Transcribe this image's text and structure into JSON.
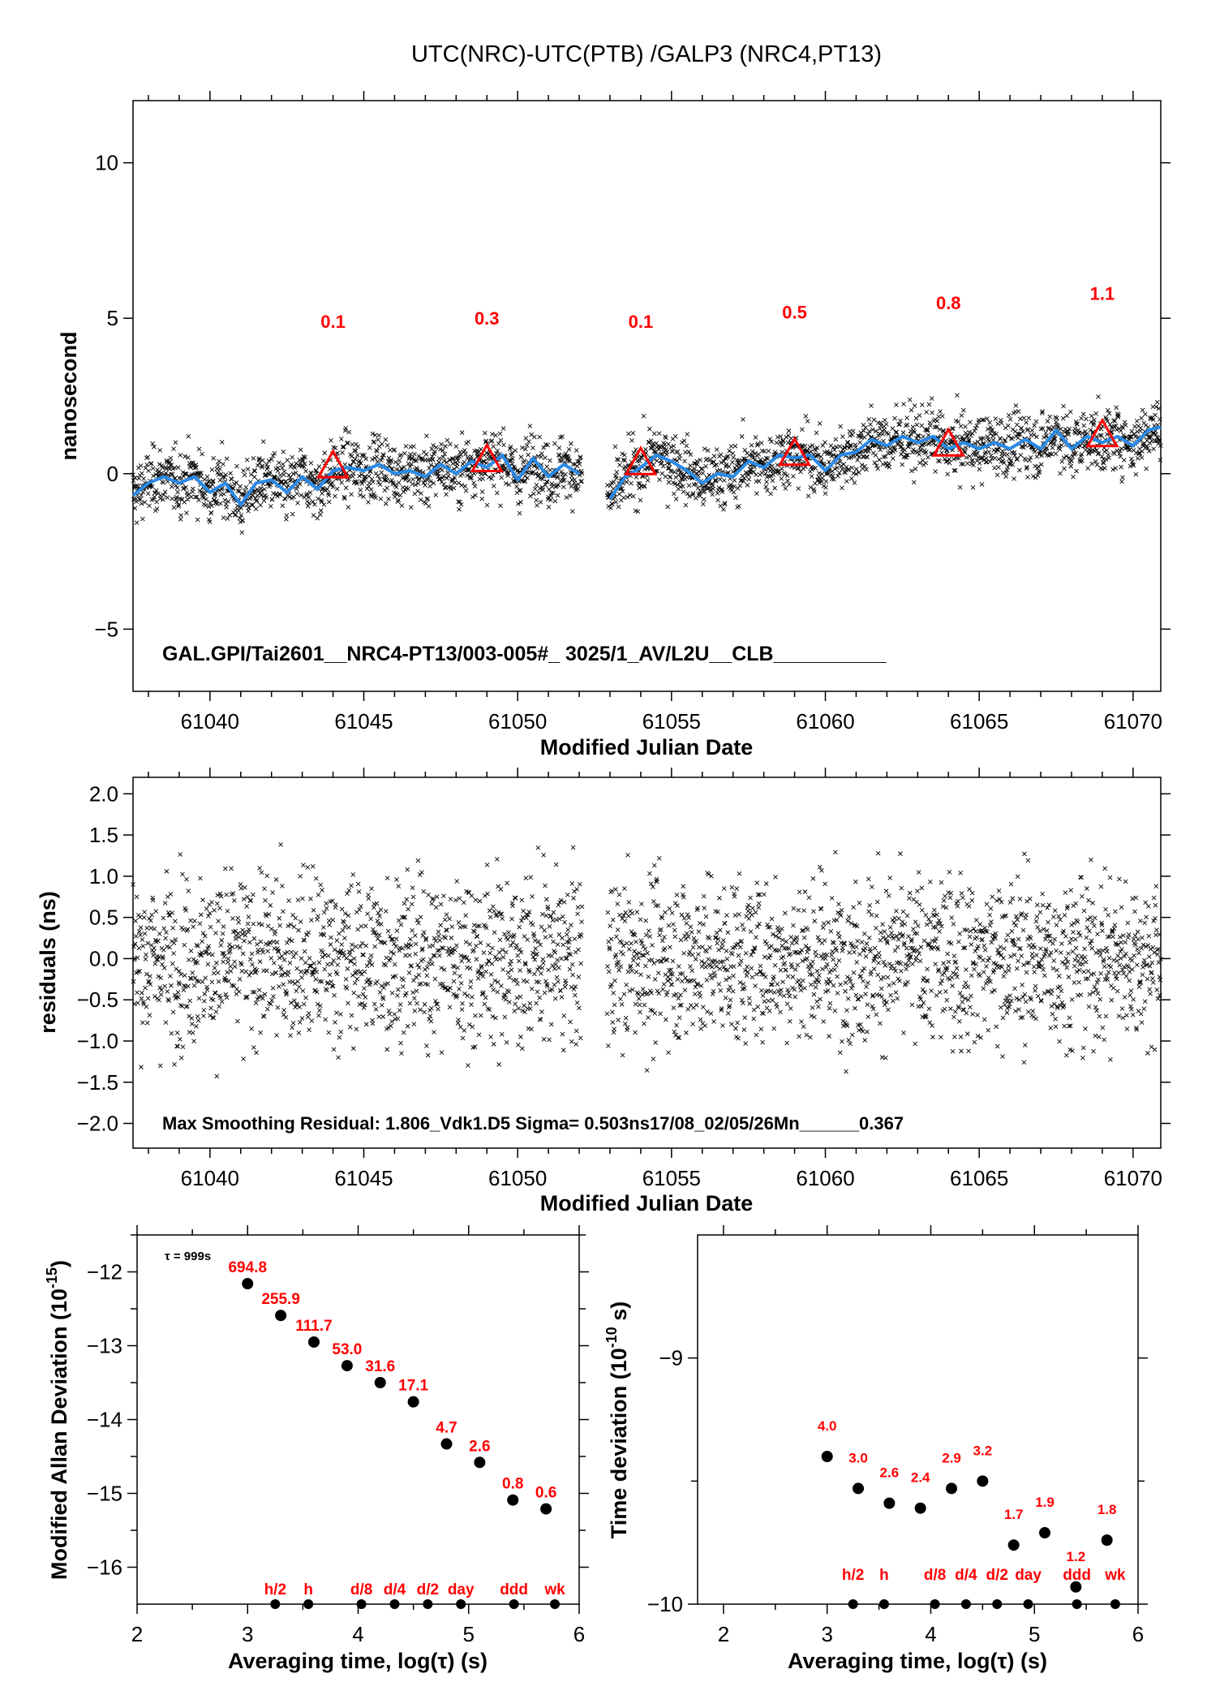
{
  "chart_data": [
    {
      "type": "scatter",
      "title": "UTC(NRC)-UTC(PTB)  /GALP3  (NRC4,PT13)",
      "xlabel": "Modified Julian Date",
      "ylabel": "nanosecond",
      "xlim": [
        61037.5,
        61070.9
      ],
      "ylim": [
        -7,
        12
      ],
      "x_ticks": [
        61040,
        61045,
        61050,
        61055,
        61060,
        61065,
        61070
      ],
      "y_ticks": [
        10,
        5,
        0,
        -5
      ],
      "y_tick_labels": [
        "10",
        "5",
        "0",
        "−5"
      ],
      "annotation": "GAL.GPI/Tai2601__NRC4-PT13/003-005#_  3025/1_AV/L2U__CLB__________",
      "data_gap": [
        61052.1,
        61052.9
      ],
      "scatter_color": "#000000",
      "smooth_color": "#2a8ae6",
      "smooth_line": {
        "x": [
          61037.5,
          61038,
          61038.5,
          61039,
          61039.5,
          61040,
          61040.5,
          61041,
          61041.5,
          61042,
          61042.5,
          61043,
          61043.5,
          61044,
          61044.5,
          61045,
          61045.5,
          61046,
          61046.5,
          61047,
          61047.5,
          61048,
          61048.5,
          61049,
          61049.5,
          61050,
          61050.5,
          61051,
          61051.5,
          61052
        ],
        "y": [
          -0.7,
          -0.3,
          -0.1,
          -0.3,
          -0.1,
          -0.6,
          -0.3,
          -1.0,
          -0.3,
          -0.2,
          -0.6,
          -0.1,
          -0.5,
          0.1,
          0.2,
          0.1,
          0.3,
          0.0,
          0.1,
          -0.1,
          0.3,
          0.0,
          0.4,
          0.2,
          0.6,
          -0.2,
          0.5,
          -0.1,
          0.3,
          0.0
        ]
      },
      "smooth_line_2": {
        "x": [
          61053,
          61053.5,
          61054,
          61054.5,
          61055,
          61055.5,
          61056,
          61056.5,
          61057,
          61057.5,
          61058,
          61058.5,
          61059,
          61059.5,
          61060,
          61060.5,
          61061,
          61061.5,
          61062,
          61062.5,
          61063,
          61063.5,
          61064,
          61064.5,
          61065,
          61065.5,
          61066,
          61066.5,
          61067,
          61067.5,
          61068,
          61068.5,
          61069,
          61069.5,
          61070,
          61070.5,
          61070.9
        ],
        "y": [
          -0.8,
          -0.1,
          0.2,
          0.6,
          0.4,
          0.1,
          -0.3,
          0.0,
          -0.1,
          0.4,
          0.2,
          0.6,
          0.5,
          0.6,
          0.1,
          0.6,
          0.7,
          1.1,
          0.9,
          1.2,
          1.0,
          1.2,
          0.8,
          1.0,
          0.8,
          1.0,
          0.8,
          1.1,
          0.8,
          1.4,
          0.8,
          1.2,
          1.0,
          1.2,
          0.9,
          1.4,
          1.5
        ]
      },
      "triangles": {
        "color": "#ff0000",
        "x": [
          61044,
          61049,
          61054,
          61059,
          61064,
          61069
        ],
        "y": [
          0.2,
          0.4,
          0.3,
          0.6,
          0.9,
          1.2
        ],
        "labels": [
          "0.1",
          "0.3",
          "0.1",
          "0.5",
          "0.8",
          "1.1"
        ],
        "label_y": [
          4.9,
          5.0,
          4.9,
          5.2,
          5.5,
          5.8
        ]
      }
    },
    {
      "type": "scatter",
      "xlabel": "Modified Julian Date",
      "ylabel": "residuals (ns)",
      "xlim": [
        61037.5,
        61070.9
      ],
      "ylim": [
        -2.3,
        2.2
      ],
      "x_ticks": [
        61040,
        61045,
        61050,
        61055,
        61060,
        61065,
        61070
      ],
      "y_ticks": [
        2.0,
        1.5,
        1.0,
        0.5,
        0.0,
        -0.5,
        -1.0,
        -1.5,
        -2.0
      ],
      "y_tick_labels": [
        "2.0",
        "1.5",
        "1.0",
        "0.5",
        "0.0",
        "−0.5",
        "−1.0",
        "−1.5",
        "−2.0"
      ],
      "annotation": "Max Smoothing Residual: 1.806_Vdk1.D5  Sigma= 0.503ns17/08_02/05/26Mn______0.367",
      "sigma": 0.503
    },
    {
      "type": "scatter",
      "xlabel": "Averaging time, log(τ) (s)",
      "ylabel": "Modified Allan Deviation (10",
      "ylabel_sup": "-15",
      "ylabel_end": ")",
      "xlim": [
        2,
        6
      ],
      "ylim": [
        -16.5,
        -11.5
      ],
      "x_ticks": [
        2,
        3,
        4,
        5,
        6
      ],
      "y_ticks": [
        -12,
        -13,
        -14,
        -15,
        -16
      ],
      "y_tick_labels": [
        "−12",
        "−13",
        "−14",
        "−15",
        "−16"
      ],
      "note": "τ = 999s",
      "x": [
        3.0,
        3.3,
        3.6,
        3.9,
        4.2,
        4.5,
        4.8,
        5.1,
        5.4,
        5.7
      ],
      "y": [
        -12.16,
        -12.59,
        -12.95,
        -13.27,
        -13.5,
        -13.76,
        -14.33,
        -14.58,
        -15.09,
        -15.21
      ],
      "labels": [
        "694.8",
        "255.9",
        "111.7",
        "53.0",
        "31.6",
        "17.1",
        "4.7",
        "2.6",
        "0.8",
        "0.6"
      ],
      "markers": {
        "x": [
          3.25,
          3.55,
          4.03,
          4.33,
          4.63,
          4.93,
          5.41,
          5.78
        ],
        "labels": [
          "h/2",
          "h",
          "d/8",
          "d/4",
          "d/2",
          "day",
          "ddd",
          "wk"
        ]
      }
    },
    {
      "type": "scatter",
      "xlabel": "Averaging time, log(τ) (s)",
      "ylabel": "Time deviation (10",
      "ylabel_sup": "-10",
      "ylabel_end": " s)",
      "xlim": [
        1.75,
        6
      ],
      "ylim": [
        -10,
        -8.5
      ],
      "x_ticks": [
        2,
        3,
        4,
        5,
        6
      ],
      "y_ticks": [
        -9,
        -10
      ],
      "y_tick_labels": [
        "−9",
        "−10"
      ],
      "x": [
        3.0,
        3.3,
        3.6,
        3.9,
        4.2,
        4.5,
        4.8,
        5.1,
        5.4,
        5.7
      ],
      "y": [
        -9.4,
        -9.53,
        -9.59,
        -9.61,
        -9.53,
        -9.5,
        -9.76,
        -9.71,
        -9.93,
        -9.74
      ],
      "labels": [
        "4.0",
        "3.0",
        "2.6",
        "2.4",
        "2.9",
        "3.2",
        "1.7",
        "1.9",
        "1.2",
        "1.8"
      ],
      "markers": {
        "x": [
          3.25,
          3.55,
          4.04,
          4.34,
          4.64,
          4.94,
          5.41,
          5.78
        ],
        "labels": [
          "h/2",
          "h",
          "d/8",
          "d/4",
          "d/2",
          "day",
          "ddd",
          "wk"
        ]
      }
    }
  ]
}
